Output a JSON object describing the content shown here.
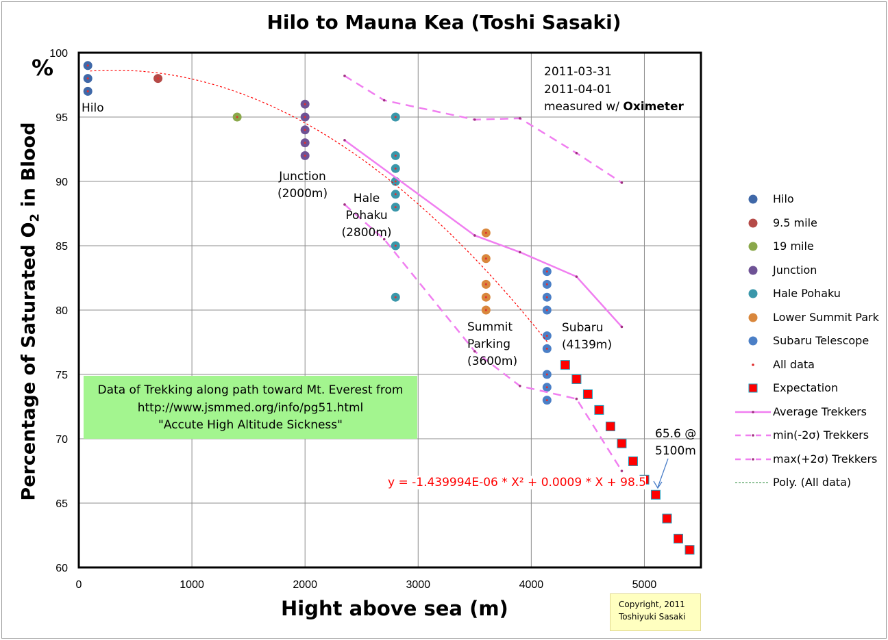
{
  "chart_data": {
    "type": "scatter",
    "title": "Hilo to Mauna Kea (Toshi Sasaki)",
    "xlabel": "Hight above sea (m)",
    "ylabel_parts": [
      "Percentage of Saturated O",
      "2",
      " in Blood"
    ],
    "y_unit": "%",
    "xlim": [
      0,
      5500
    ],
    "ylim": [
      60,
      100
    ],
    "xticks": [
      0,
      1000,
      2000,
      3000,
      4000,
      5000
    ],
    "yticks": [
      60,
      65,
      70,
      75,
      80,
      85,
      90,
      95,
      100
    ],
    "grid": true,
    "legend_position": "right",
    "series": [
      {
        "name": "Hilo",
        "type": "scatter",
        "color": "#3f68a8",
        "x": [
          80,
          80,
          80
        ],
        "y": [
          99,
          98,
          97
        ]
      },
      {
        "name": "9.5 mile",
        "type": "scatter",
        "color": "#b54a47",
        "x": [
          700
        ],
        "y": [
          98
        ]
      },
      {
        "name": "19 mile",
        "type": "scatter",
        "color": "#8aa84a",
        "x": [
          1400
        ],
        "y": [
          95
        ]
      },
      {
        "name": "Junction",
        "type": "scatter",
        "color": "#6e5295",
        "x": [
          2000,
          2000,
          2000,
          2000,
          2000
        ],
        "y": [
          96,
          95,
          94,
          93,
          92
        ]
      },
      {
        "name": "Hale Pohaku",
        "type": "scatter",
        "color": "#3a97aa",
        "x": [
          2800,
          2800,
          2800,
          2800,
          2800,
          2800,
          2800,
          2800
        ],
        "y": [
          95,
          92,
          91,
          90,
          89,
          88,
          85,
          81
        ]
      },
      {
        "name": "Lower Summit Park",
        "type": "scatter",
        "color": "#d9873c",
        "x": [
          3600,
          3600,
          3600,
          3600,
          3600
        ],
        "y": [
          86,
          84,
          82,
          81,
          80
        ]
      },
      {
        "name": "Subaru Telescope",
        "type": "scatter",
        "color": "#4b7fc6",
        "x": [
          4139,
          4139,
          4139,
          4139,
          4139,
          4139,
          4139,
          4139,
          4139
        ],
        "y": [
          83,
          82,
          81,
          80,
          78,
          77,
          75,
          74,
          73
        ]
      },
      {
        "name": "All data",
        "type": "dot",
        "color": "#e03030"
      },
      {
        "name": "Expectation",
        "type": "square",
        "color": "#ff0000",
        "x": [
          4300,
          4400,
          4500,
          4600,
          4700,
          4800,
          4900,
          5000,
          5100,
          5200,
          5300,
          5400
        ],
        "y": [
          75.74,
          74.63,
          73.46,
          72.24,
          70.96,
          69.64,
          68.25,
          66.82,
          65.65,
          63.8,
          62.24,
          61.37
        ]
      },
      {
        "name": "Average Trekkers",
        "type": "line",
        "color": "#f07ef0",
        "x": [
          2350,
          3500,
          3900,
          4400,
          4800
        ],
        "y": [
          93.2,
          85.8,
          84.5,
          82.6,
          78.7
        ]
      },
      {
        "name": "min(-2σ) Trekkers",
        "type": "dash",
        "color": "#f07ef0",
        "x": [
          2350,
          2700,
          3500,
          3900,
          4400,
          4800
        ],
        "y": [
          88.2,
          85.5,
          76.8,
          74.1,
          73.1,
          67.5
        ]
      },
      {
        "name": "max(+2σ) Trekkers",
        "type": "dash",
        "color": "#f07ef0",
        "x": [
          2350,
          2700,
          3500,
          3900,
          4400,
          4800
        ],
        "y": [
          98.2,
          96.3,
          94.8,
          94.9,
          92.2,
          89.9
        ]
      },
      {
        "name": "Poly. (All data)",
        "type": "poly",
        "color": "#ff0000",
        "coef": [
          -1.439994e-06,
          0.0009,
          98.5
        ],
        "range": [
          100,
          4150
        ]
      }
    ],
    "annotations": {
      "hilo": "Hilo",
      "junction": [
        "Junction",
        "(2000m)"
      ],
      "hale": [
        "Hale",
        "Pohaku",
        "(2800m)"
      ],
      "summit": [
        "Summit",
        "Parking",
        "(3600m)"
      ],
      "subaru": [
        "Subaru",
        "(4139m)"
      ],
      "dates": [
        "2011-03-31",
        "2011-04-01"
      ],
      "measured": "measured w/ ",
      "measured_bold": "Oximeter",
      "note": [
        "Data of Trekking along path toward Mt. Everest  from",
        "http://www.jsmmed.org/info/pg51.html",
        "\"Accute High Altitude Sickness\""
      ],
      "equation": "y = -1.439994E-06 * X² + 0.0009 * X + 98.5",
      "callout": [
        "65.6 @",
        "5100m"
      ],
      "copyright": [
        "Copyright, 2011",
        "Toshiyuki Sasaki"
      ]
    }
  }
}
